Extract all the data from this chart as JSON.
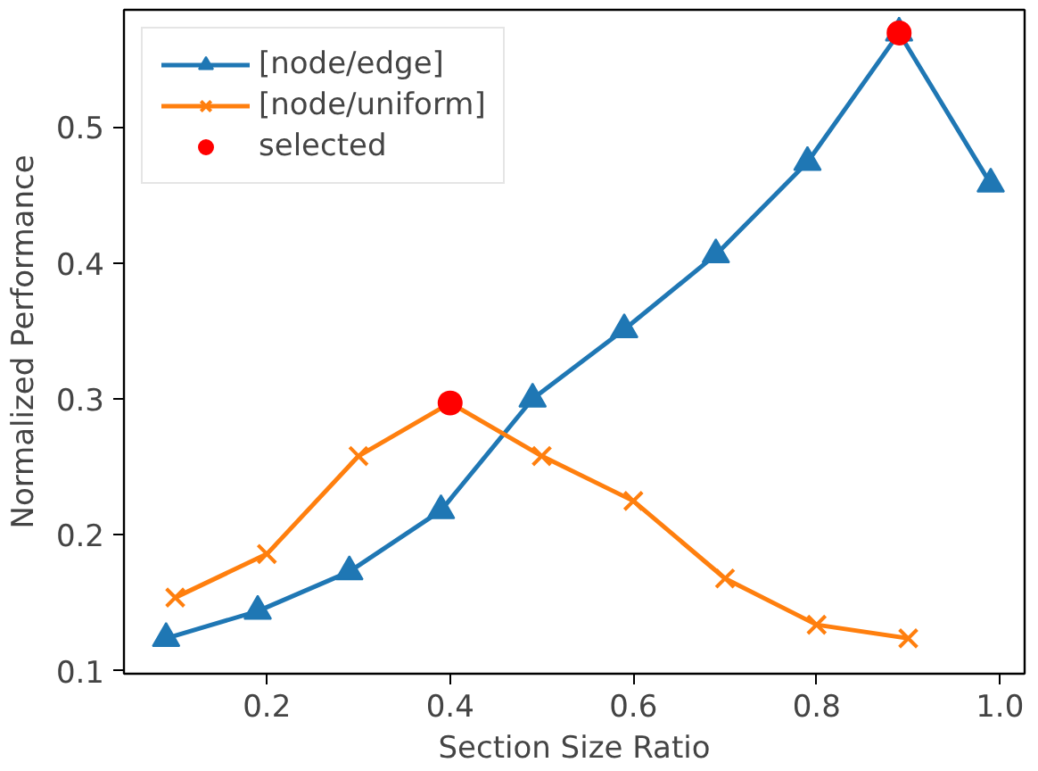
{
  "chart_data": {
    "type": "line",
    "xlabel": "Section Size Ratio",
    "ylabel": "Normalized Performance",
    "xlim": [
      0.044,
      1.027
    ],
    "ylim": [
      0.098,
      0.586
    ],
    "xticks": [
      {
        "value": 0.2,
        "label": "0.2"
      },
      {
        "value": 0.4,
        "label": "0.4"
      },
      {
        "value": 0.6,
        "label": "0.6"
      },
      {
        "value": 0.8,
        "label": "0.8"
      },
      {
        "value": 1.0,
        "label": "1.0"
      }
    ],
    "yticks": [
      0.1,
      0.2,
      0.3,
      0.4,
      0.5
    ],
    "grid": false,
    "legend": "top left",
    "series": [
      {
        "name": "[node/edge]",
        "color": "#1f77b4",
        "marker": "triangle",
        "x": [
          0.09,
          0.19,
          0.29,
          0.39,
          0.49,
          0.59,
          0.69,
          0.79,
          0.89,
          0.99
        ],
        "values": [
          0.124,
          0.144,
          0.173,
          0.218,
          0.3,
          0.351,
          0.406,
          0.474,
          0.569,
          0.458
        ]
      },
      {
        "name": "[node/uniform]",
        "color": "#ff7f0e",
        "marker": "cross",
        "x": [
          0.1,
          0.2,
          0.3,
          0.4,
          0.5,
          0.6,
          0.7,
          0.8,
          0.9
        ],
        "values": [
          0.154,
          0.186,
          0.258,
          0.297,
          0.258,
          0.225,
          0.168,
          0.134,
          0.124
        ]
      },
      {
        "name": "selected",
        "type": "scatter",
        "color": "#ff0000",
        "marker": "circle",
        "x": [
          0.4,
          0.89
        ],
        "values": [
          0.297,
          0.569
        ]
      }
    ]
  }
}
